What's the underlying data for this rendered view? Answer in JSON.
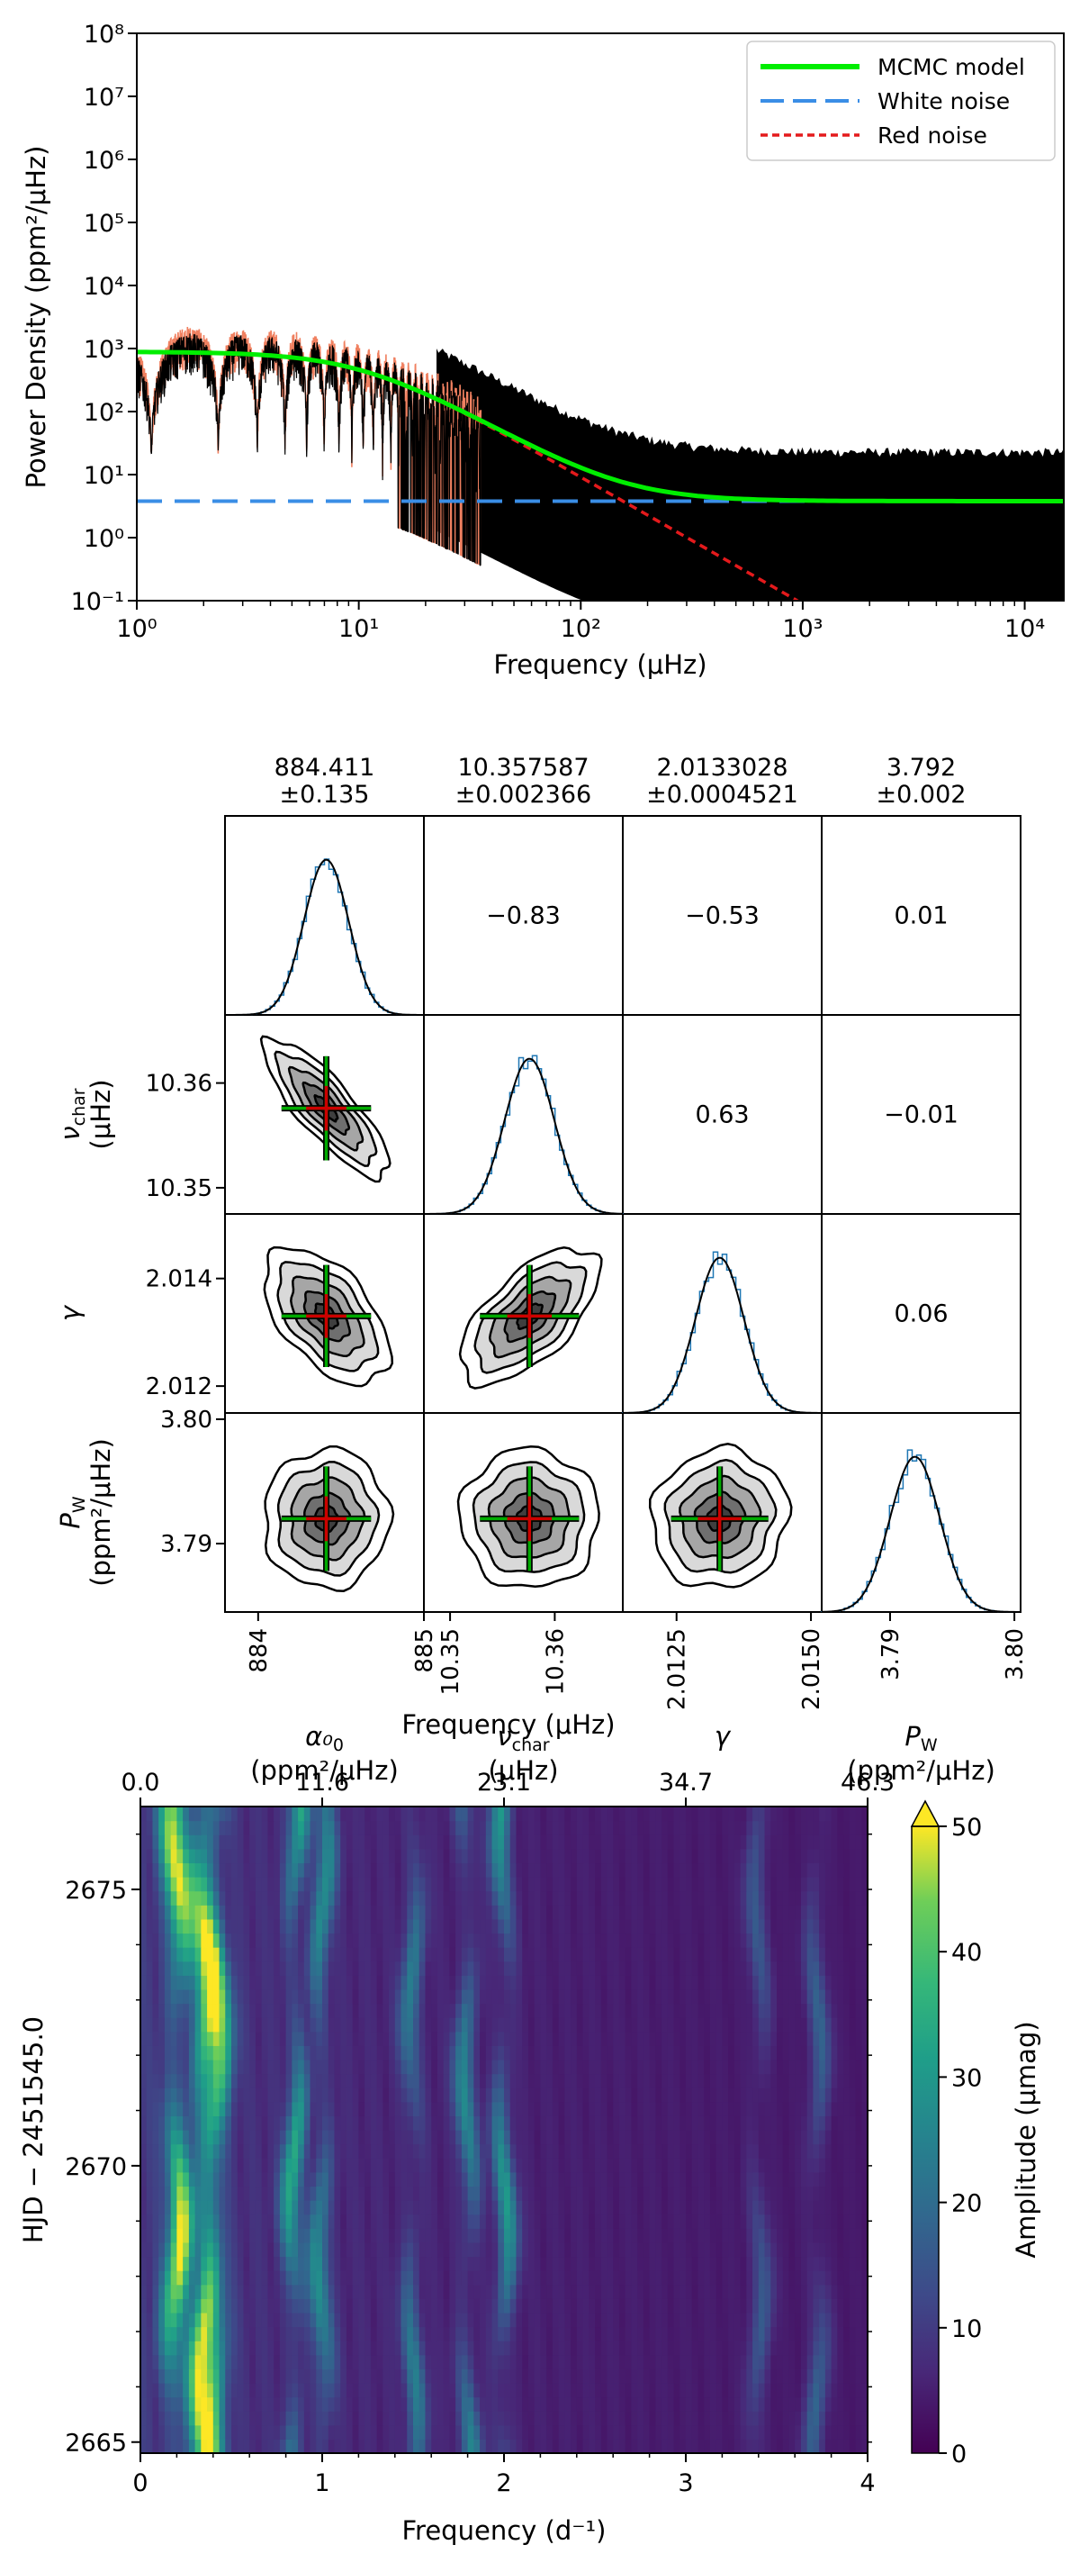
{
  "chart_data": [
    {
      "type": "line",
      "xscale": "log",
      "yscale": "log",
      "xlabel": "Frequency (μHz)",
      "ylabel": "Power Density (ppm²/μHz)",
      "xlim": [
        1,
        15000
      ],
      "ylim": [
        0.1,
        100000000
      ],
      "x_ticks": [
        "10⁰",
        "10¹",
        "10²",
        "10³",
        "10⁴"
      ],
      "y_ticks": [
        "10⁻¹",
        "10⁰",
        "10¹",
        "10²",
        "10³",
        "10⁴",
        "10⁵",
        "10⁶",
        "10⁷",
        "10⁸"
      ],
      "legend_position": "top-right",
      "series": [
        {
          "name": "MCMC model",
          "color": "#00ee00",
          "style": "solid",
          "model": {
            "alpha0": 884.411,
            "nu_char": 10.357587,
            "gamma": 2.0133028,
            "P_W": 3.792
          }
        },
        {
          "name": "White noise",
          "color": "#3a8ee6",
          "style": "dashed",
          "value": 3.792
        },
        {
          "name": "Red noise",
          "color": "#e41a1c",
          "style": "dotted",
          "model": {
            "alpha0": 884.411,
            "nu_char": 10.357587,
            "gamma": 2.0133028
          }
        },
        {
          "color": "#000000",
          "style": "solid",
          "description_free": true
        },
        {
          "color": "#f08060",
          "style": "solid",
          "description_free": true
        }
      ]
    },
    {
      "type": "corner",
      "params": [
        {
          "label": "α₀",
          "unit": "(ppm²/μHz)",
          "value": "884.411",
          "err": "±0.135",
          "center": 884.411,
          "sigma": 0.135,
          "range": [
            883.8,
            885.0
          ],
          "ticks": [
            884,
            885
          ]
        },
        {
          "label": "ν",
          "sub": "char",
          "unit": "(μHz)",
          "value": "10.357587",
          "err": "±0.002366",
          "center": 10.357587,
          "sigma": 0.002366,
          "range": [
            10.3475,
            10.3665
          ],
          "ticks": [
            10.35,
            10.36
          ],
          "ticklabels": [
            "10.35",
            "10.36"
          ]
        },
        {
          "label": "γ",
          "unit": "",
          "value": "2.0133028",
          "err": "±0.0004521",
          "center": 2.0133028,
          "sigma": 0.0004521,
          "range": [
            2.0115,
            2.0152
          ],
          "ticks": [
            2.0125,
            2.015
          ],
          "ticklabels": [
            "2.0125",
            "2.0150"
          ],
          "yticks": [
            2.012,
            2.014
          ],
          "yticklabels": [
            "2.012",
            "2.014"
          ]
        },
        {
          "label": "P",
          "sub": "W",
          "unit": "(ppm²/μHz)",
          "value": "3.792",
          "err": "±0.002",
          "center": 3.792,
          "sigma": 0.002,
          "range": [
            3.7845,
            3.8005
          ],
          "ticks": [
            3.79,
            3.8
          ],
          "ticklabels": [
            "3.79",
            "3.80"
          ]
        }
      ],
      "correlations": [
        {
          "row": 0,
          "col": 1,
          "value": "−0.83"
        },
        {
          "row": 0,
          "col": 2,
          "value": "−0.53"
        },
        {
          "row": 0,
          "col": 3,
          "value": "0.01"
        },
        {
          "row": 1,
          "col": 2,
          "value": "0.63"
        },
        {
          "row": 1,
          "col": 3,
          "value": "−0.01"
        },
        {
          "row": 2,
          "col": 3,
          "value": "0.06"
        }
      ],
      "contour_corr": [
        {
          "row": 1,
          "col": 0,
          "rho": -0.83
        },
        {
          "row": 2,
          "col": 0,
          "rho": -0.53
        },
        {
          "row": 2,
          "col": 1,
          "rho": 0.63
        },
        {
          "row": 3,
          "col": 0,
          "rho": 0.01
        },
        {
          "row": 3,
          "col": 1,
          "rho": -0.01
        },
        {
          "row": 3,
          "col": 2,
          "rho": 0.06
        }
      ],
      "colors": {
        "marker_cross": "#00aa00",
        "marker_center": "#cc0000",
        "hist": "#1f77b4"
      }
    },
    {
      "type": "heatmap",
      "xlabel": "Frequency (d⁻¹)",
      "ylabel": "HJD − 2451545.0",
      "top_xlabel": "Frequency (μHz)",
      "xlim": [
        0,
        4
      ],
      "ylim": [
        2664.8,
        2676.5
      ],
      "x_ticks": [
        0,
        1,
        2,
        3,
        4
      ],
      "y_ticks": [
        2665,
        2670,
        2675
      ],
      "top_ticks": [
        "0.0",
        "11.6",
        "23.1",
        "34.7",
        "46.3"
      ],
      "colorbar": {
        "label": "Amplitude (μmag)",
        "min": 0,
        "max": 50,
        "ticks": [
          0,
          10,
          20,
          30,
          40,
          50
        ],
        "extend": "max"
      },
      "colormap": "viridis",
      "peaks_freq": [
        0.2,
        0.35,
        0.42,
        0.85,
        1.0,
        1.5,
        1.8,
        2.0,
        3.4,
        3.72
      ],
      "peaks_amp": [
        42,
        40,
        30,
        28,
        22,
        18,
        22,
        25,
        12,
        14
      ]
    }
  ]
}
